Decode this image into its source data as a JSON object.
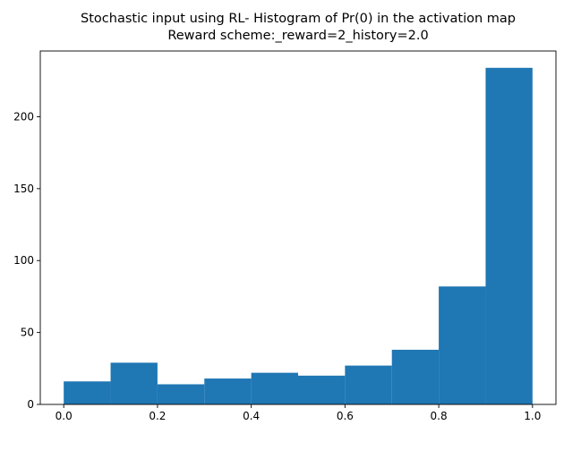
{
  "chart_data": {
    "type": "bar",
    "title_line1": "Stochastic input using RL- Histogram of Pr(0) in the activation map",
    "title_line2": "Reward scheme:_reward=2_history=2.0",
    "xlabel": "",
    "ylabel": "",
    "bin_edges": [
      0.0,
      0.1,
      0.2,
      0.3,
      0.4,
      0.5,
      0.6,
      0.7,
      0.8,
      0.9,
      1.0
    ],
    "values": [
      16,
      29,
      14,
      18,
      22,
      20,
      27,
      38,
      82,
      234
    ],
    "xlim": [
      -0.05,
      1.05
    ],
    "ylim": [
      0,
      245.7
    ],
    "xticks": [
      0.0,
      0.2,
      0.4,
      0.6,
      0.8,
      1.0
    ],
    "xtick_labels": [
      "0.0",
      "0.2",
      "0.4",
      "0.6",
      "0.8",
      "1.0"
    ],
    "yticks": [
      0,
      50,
      100,
      150,
      200
    ],
    "ytick_labels": [
      "0",
      "50",
      "100",
      "150",
      "200"
    ],
    "bar_color": "#1f77b4",
    "grid": false,
    "legend": "none"
  }
}
